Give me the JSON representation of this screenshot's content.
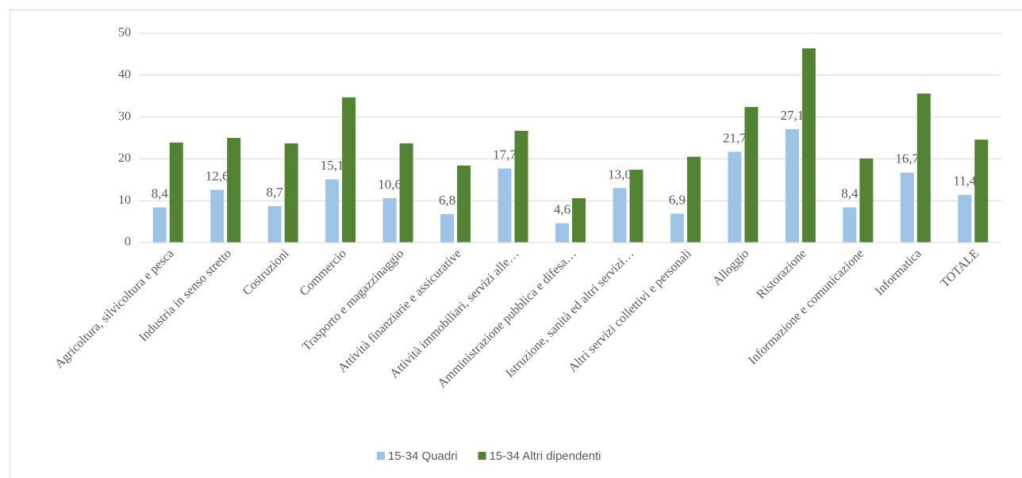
{
  "chart_data": {
    "type": "bar",
    "categories": [
      "Agricoltura, silvicoltura e pesca",
      "Industria in senso stretto",
      "Costruzioni",
      "Commercio",
      "Trasporto e magazzinaggio",
      "Attività finanziarie e assicurative",
      "Attività immobiliari, servizi alle…",
      "Amministrazione pubblica e difesa…",
      "Istruzione, sanità ed altri servizi…",
      "Altri servizi collettivi e personali",
      "Alloggio",
      "Ristorazione",
      "Informazione e comunicazione",
      "Informatica",
      "TOTALE"
    ],
    "series": [
      {
        "name": "15-34 Quadri",
        "color": "#9dc3e6",
        "values": [
          8.4,
          12.6,
          8.7,
          15.1,
          10.6,
          6.8,
          17.7,
          4.6,
          13.0,
          6.9,
          21.7,
          27.1,
          8.4,
          16.7,
          11.4
        ],
        "value_labels": [
          "8,4",
          "12,6",
          "8,7",
          "15,1",
          "10,6",
          "6,8",
          "17,7",
          "4,6",
          "13,0",
          "6,9",
          "21,7",
          "27,1",
          "8,4",
          "16,7",
          "11,4"
        ]
      },
      {
        "name": "15-34 Altri dipendenti",
        "color": "#548235",
        "values": [
          23.9,
          25.0,
          23.7,
          34.7,
          23.7,
          18.4,
          26.7,
          10.6,
          17.4,
          20.5,
          32.4,
          46.4,
          20.1,
          35.6,
          24.6
        ]
      }
    ],
    "ylim": [
      0,
      50
    ],
    "yticks": [
      0,
      10,
      20,
      30,
      40,
      50
    ],
    "grid": true,
    "legend": "bottom"
  }
}
